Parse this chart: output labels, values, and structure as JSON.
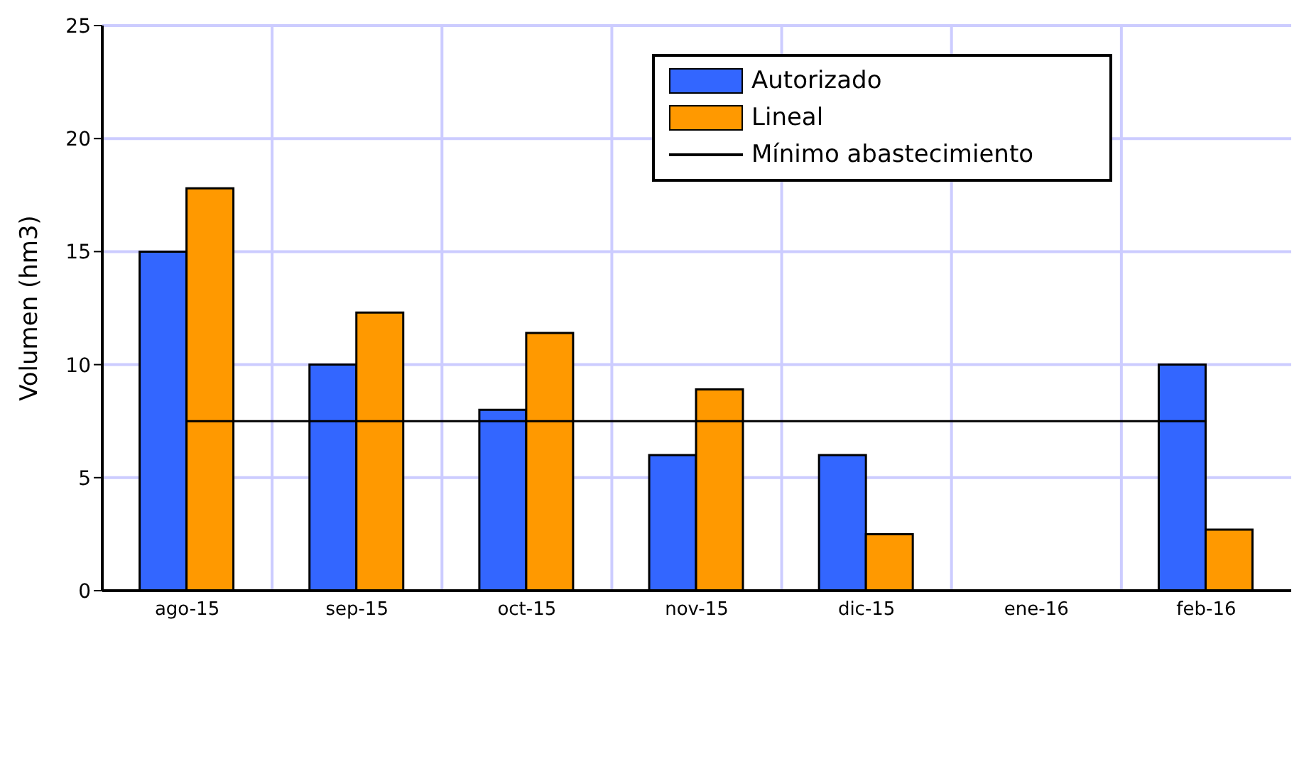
{
  "chart_data": {
    "type": "bar",
    "ylabel": "Volumen (hm3)",
    "categories": [
      "ago-15",
      "sep-15",
      "oct-15",
      "nov-15",
      "dic-15",
      "ene-16",
      "feb-16"
    ],
    "series": [
      {
        "name": "Autorizado",
        "color": "#3366ff",
        "values": [
          15,
          10,
          8,
          6,
          6,
          null,
          10
        ]
      },
      {
        "name": "Lineal",
        "color": "#ff9900",
        "values": [
          17.8,
          12.3,
          11.4,
          8.9,
          2.5,
          null,
          2.7
        ]
      },
      {
        "name": "Mínimo abastecimiento",
        "type": "line",
        "color": "#000000",
        "values": [
          7.5,
          7.5,
          7.5,
          7.5,
          7.5,
          7.5,
          7.5
        ]
      }
    ],
    "ylim": [
      0,
      25
    ],
    "yticks": [
      0,
      5,
      10,
      15,
      20,
      25
    ],
    "grid": true,
    "legend": "top right",
    "marker": "none"
  }
}
